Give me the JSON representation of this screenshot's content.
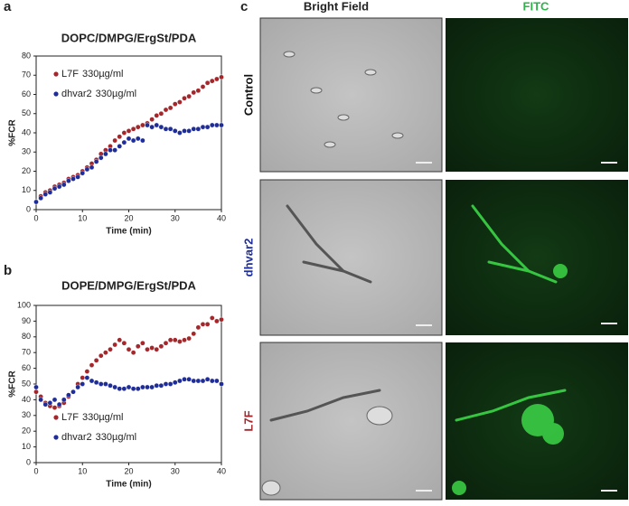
{
  "figure": {
    "panel_labels": [
      "a",
      "b",
      "c"
    ],
    "columns": [
      {
        "label": "Bright Field"
      },
      {
        "label": "FITC"
      }
    ],
    "rows": [
      {
        "label": "Control",
        "color": "#111111"
      },
      {
        "label": "dhvar2",
        "color": "#1f2d99"
      },
      {
        "label": "L7F",
        "color": "#a3272b"
      }
    ]
  },
  "chart_data": [
    {
      "type": "scatter",
      "title": "DOPC/DMPG/ErgSt/PDA",
      "x_label": "Time (min)",
      "y_label": "%FCR",
      "x": [
        0,
        1,
        2,
        3,
        4,
        5,
        6,
        7,
        8,
        9,
        10,
        11,
        12,
        13,
        14,
        15,
        16,
        17,
        18,
        19,
        20,
        21,
        22,
        23,
        24,
        25,
        26,
        27,
        28,
        29,
        30,
        31,
        32,
        33,
        34,
        35,
        36,
        37,
        38,
        39,
        40
      ],
      "series": [
        {
          "name": "L7F",
          "concentration": "330µg/ml",
          "color": "#a3272b",
          "values": [
            4,
            7,
            9,
            10,
            12,
            13,
            14,
            16,
            17,
            18,
            20,
            22,
            24,
            26,
            29,
            31,
            33,
            36,
            38,
            40,
            41,
            42,
            43,
            44,
            45,
            47,
            49,
            50,
            52,
            53,
            55,
            56,
            58,
            59,
            61,
            62,
            64,
            66,
            67,
            68,
            69
          ]
        },
        {
          "name": "dhvar2",
          "concentration": "330µg/ml",
          "color": "#1f2d99",
          "values": [
            4,
            6,
            8,
            9,
            11,
            12,
            13,
            15,
            16,
            17,
            19,
            21,
            22,
            25,
            27,
            29,
            31,
            31,
            33,
            35,
            37,
            36,
            37,
            36,
            44,
            43,
            44,
            43,
            42,
            42,
            41,
            40,
            41,
            41,
            42,
            42,
            43,
            43,
            44,
            44,
            44
          ]
        }
      ],
      "xlim": [
        0,
        40
      ],
      "xticks": [
        0,
        10,
        20,
        30,
        40
      ],
      "ylim": [
        0,
        80
      ],
      "yticks": [
        0,
        10,
        20,
        30,
        40,
        50,
        60,
        70,
        80
      ],
      "grid": false,
      "legend": "upper left"
    },
    {
      "type": "scatter",
      "title": "DOPE/DMPG/ErgSt/PDA",
      "x_label": "Time (min)",
      "y_label": "%FCR",
      "x": [
        0,
        1,
        2,
        3,
        4,
        5,
        6,
        7,
        8,
        9,
        10,
        11,
        12,
        13,
        14,
        15,
        16,
        17,
        18,
        19,
        20,
        21,
        22,
        23,
        24,
        25,
        26,
        27,
        28,
        29,
        30,
        31,
        32,
        33,
        34,
        35,
        36,
        37,
        38,
        39,
        40
      ],
      "series": [
        {
          "name": "L7F",
          "concentration": "330µg/ml",
          "color": "#a3272b",
          "values": [
            45,
            42,
            38,
            36,
            35,
            36,
            38,
            42,
            45,
            50,
            54,
            58,
            62,
            65,
            68,
            70,
            72,
            75,
            78,
            76,
            72,
            70,
            74,
            76,
            72,
            73,
            72,
            74,
            76,
            78,
            78,
            77,
            78,
            79,
            82,
            86,
            88,
            88,
            92,
            90,
            91
          ]
        },
        {
          "name": "dhvar2",
          "concentration": "330µg/ml",
          "color": "#1f2d99",
          "values": [
            48,
            40,
            37,
            38,
            40,
            37,
            40,
            43,
            45,
            48,
            50,
            54,
            52,
            51,
            50,
            50,
            49,
            48,
            47,
            47,
            48,
            47,
            47,
            48,
            48,
            48,
            49,
            49,
            50,
            50,
            51,
            52,
            53,
            53,
            52,
            52,
            52,
            53,
            52,
            52,
            50
          ]
        }
      ],
      "xlim": [
        0,
        40
      ],
      "xticks": [
        0,
        10,
        20,
        30,
        40
      ],
      "ylim": [
        0,
        100
      ],
      "yticks": [
        0,
        10,
        20,
        30,
        40,
        50,
        60,
        70,
        80,
        90,
        100
      ],
      "grid": false,
      "legend": "lower left"
    }
  ]
}
